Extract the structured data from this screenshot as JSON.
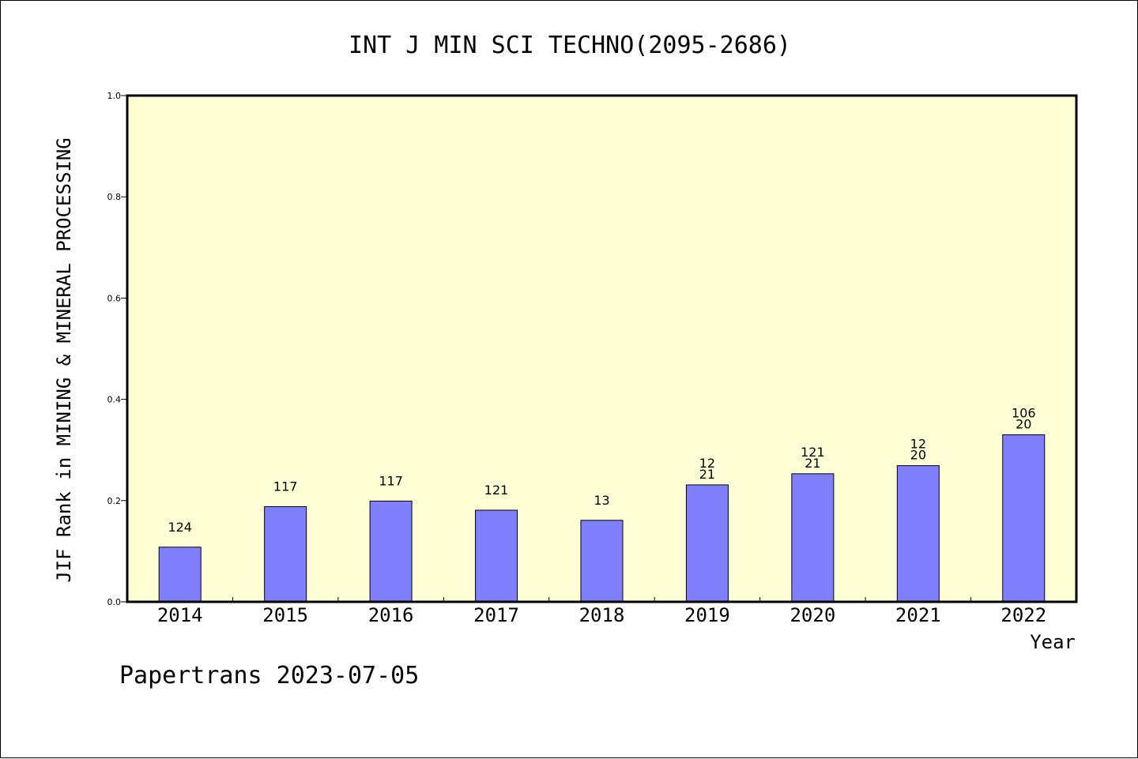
{
  "chart_data": {
    "type": "bar",
    "title": "INT J MIN SCI TECHNO(2095-2686)",
    "xlabel": "Year",
    "ylabel": "JIF Rank in MINING & MINERAL PROCESSING",
    "ylim": [
      0,
      1.0
    ],
    "yticks": [
      "0.0",
      "0.2",
      "0.4",
      "0.6",
      "0.8",
      "1.0"
    ],
    "categories": [
      "2014",
      "2015",
      "2016",
      "2017",
      "2018",
      "2019",
      "2020",
      "2021",
      "2022"
    ],
    "values": [
      0.108,
      0.188,
      0.199,
      0.181,
      0.161,
      0.231,
      0.253,
      0.269,
      0.33
    ],
    "bar_labels": [
      [
        "124"
      ],
      [
        "117"
      ],
      [
        "117"
      ],
      [
        "121"
      ],
      [
        "13"
      ],
      [
        "12",
        "21"
      ],
      [
        "121",
        "21"
      ],
      [
        "12",
        "20"
      ],
      [
        "106",
        "20"
      ]
    ],
    "bar_color": "#8080ff",
    "plot_background": "#ffffd6",
    "grid": false,
    "footer": "Papertrans 2023-07-05"
  }
}
